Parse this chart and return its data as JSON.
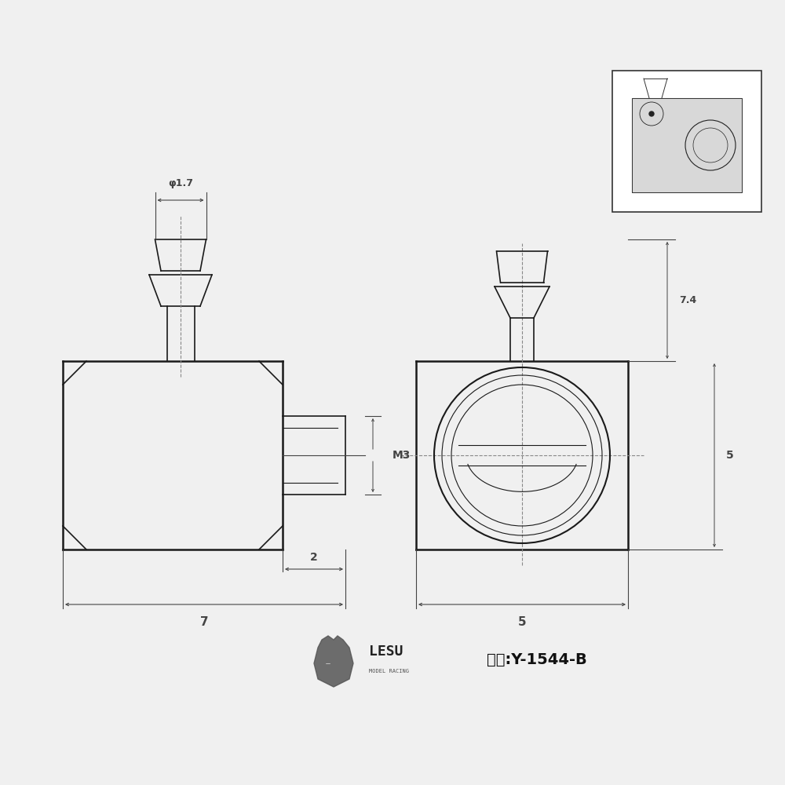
{
  "bg_color": "#f0f0f0",
  "line_color": "#1a1a1a",
  "dim_color": "#444444",
  "thin_line": 0.8,
  "medium_line": 1.2,
  "thick_line": 1.8,
  "dim_label_1_7": "φ1.7",
  "dim_label_M3": "M3",
  "dim_label_2": "2",
  "dim_label_7": "7",
  "dim_label_5_w": "5",
  "dim_label_5_h": "5",
  "dim_label_7_4": "7.4",
  "model_number": "型号:Y-1544-B",
  "lesu_text": "LESU",
  "model_racing_text": "MODEL RACING"
}
